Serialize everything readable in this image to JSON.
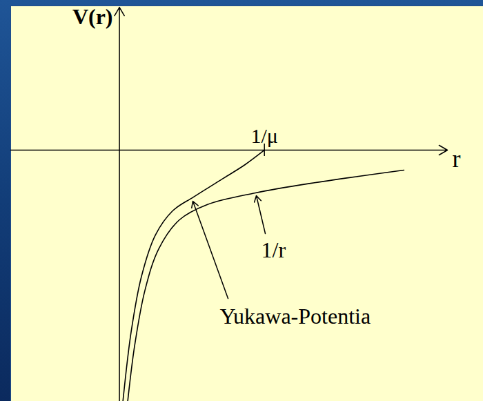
{
  "chart_data": {
    "type": "line",
    "x_label": "r",
    "y_label": "V(r)",
    "xlim": [
      -0.75,
      2.51
    ],
    "ylim": [
      -1.733,
      0.995
    ],
    "xticks": [
      {
        "value": 1,
        "label": "1/μ"
      }
    ],
    "yticks": [],
    "tick_labels": "x",
    "grid": false,
    "series": [
      {
        "name": "1/r",
        "color": "#000000",
        "x": [
          0.057,
          0.105,
          0.176,
          0.271,
          0.414,
          0.605,
          0.938,
          1.319,
          1.962
        ],
        "values": [
          -1.733,
          -1.348,
          -0.967,
          -0.681,
          -0.481,
          -0.376,
          -0.295,
          -0.229,
          -0.138
        ]
      },
      {
        "name": "Yukawa-Potentia",
        "color": "#000000",
        "x": [
          0.024,
          0.081,
          0.152,
          0.248,
          0.367,
          0.51,
          0.7,
          0.867,
          1.0
        ],
        "values": [
          -1.733,
          -1.252,
          -0.871,
          -0.586,
          -0.419,
          -0.324,
          -0.205,
          -0.1,
          0
        ]
      }
    ]
  }
}
